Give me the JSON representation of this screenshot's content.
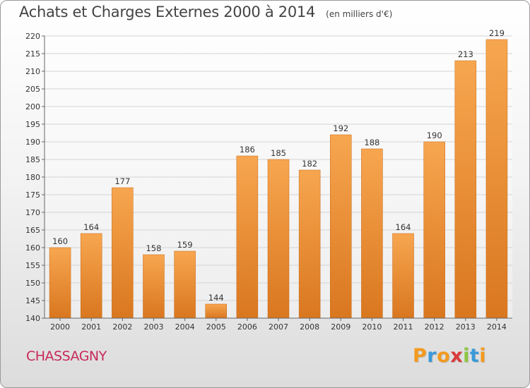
{
  "chart_data": {
    "type": "bar",
    "title": "Achats et Charges Externes 2000 à 2014",
    "unit": "(en milliers d'€)",
    "categories": [
      "2000",
      "2001",
      "2002",
      "2003",
      "2004",
      "2005",
      "2006",
      "2007",
      "2008",
      "2009",
      "2010",
      "2011",
      "2012",
      "2013",
      "2014"
    ],
    "values": [
      160,
      164,
      177,
      158,
      159,
      144,
      186,
      185,
      182,
      192,
      188,
      164,
      190,
      213,
      219
    ],
    "ylim": [
      140,
      220
    ],
    "yticks": [
      140,
      145,
      150,
      155,
      160,
      165,
      170,
      175,
      180,
      185,
      190,
      195,
      200,
      205,
      210,
      215,
      220
    ],
    "grid": true,
    "bar_color_top": "#f7a650",
    "bar_color_bottom": "#d9771f"
  },
  "footer": {
    "commune": "CHASSAGNY",
    "brand": [
      "P",
      "r",
      "o",
      "x",
      "i",
      "t",
      "i"
    ],
    "brand_colors": [
      "#f39a1e",
      "#3a9ad9",
      "#f39a1e",
      "#d93a3a",
      "#8cc63f",
      "#3a9ad9",
      "#f39a1e"
    ]
  }
}
